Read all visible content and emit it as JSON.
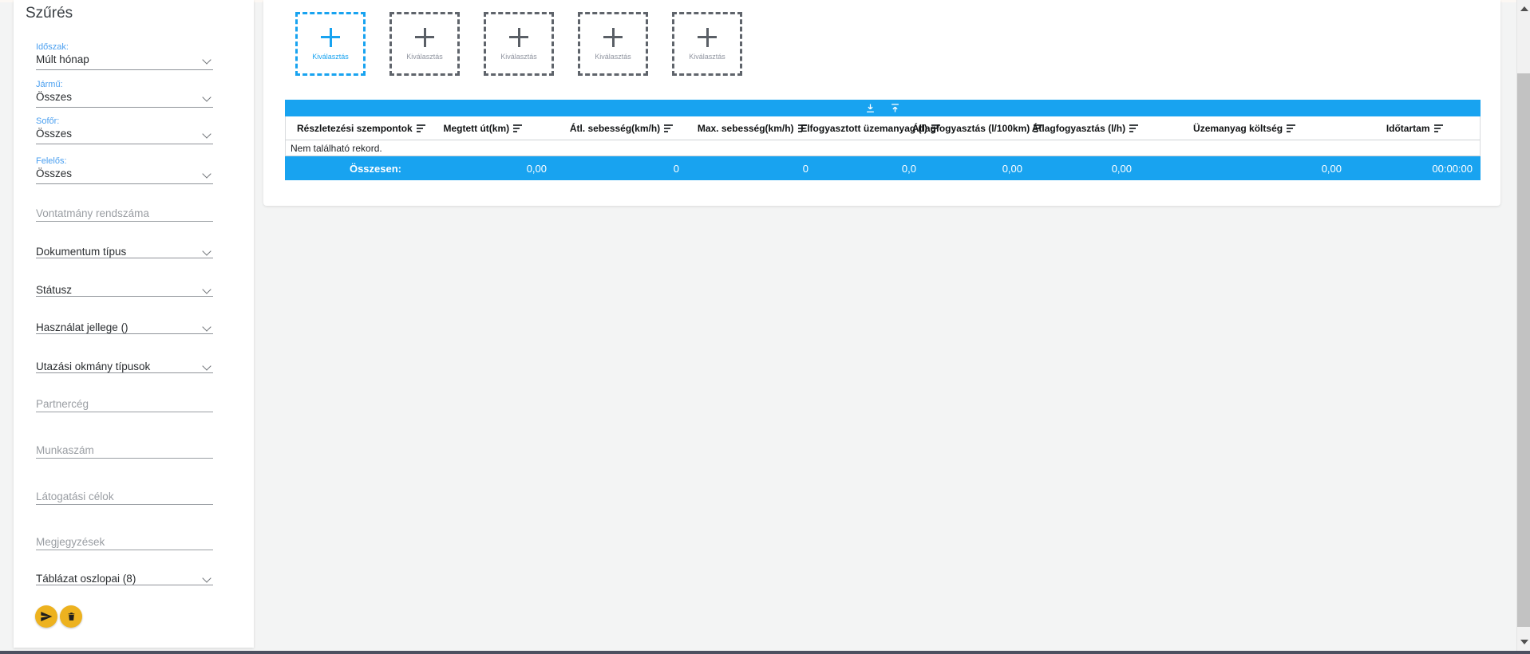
{
  "sidebar": {
    "title": "Szűrés",
    "fields": [
      {
        "label": "Időszak:",
        "value": "Múlt hónap"
      },
      {
        "label": "Jármű:",
        "value": "Összes"
      },
      {
        "label": "Sofőr:",
        "value": "Összes"
      },
      {
        "label": "Felelős:",
        "value": "Összes"
      },
      {
        "placeholder": "Vontatmány rendszáma"
      },
      {
        "value": "Dokumentum típus"
      },
      {
        "value": "Státusz"
      },
      {
        "value": "Használat jellege ()"
      },
      {
        "value": "Utazási okmány típusok"
      },
      {
        "placeholder": "Partnercég"
      },
      {
        "placeholder": "Munkaszám"
      },
      {
        "placeholder": "Látogatási célok"
      },
      {
        "placeholder": "Megjegyzések"
      },
      {
        "value": "Táblázat oszlopai (8)"
      }
    ],
    "actions": {
      "submit_icon": "send-icon",
      "clear_icon": "trash-icon"
    }
  },
  "selectors": {
    "label": "Kiválasztás",
    "count": 5,
    "active_index": 0,
    "plus_icon": "plus-icon"
  },
  "table": {
    "toolbar_icons": [
      "download-icon",
      "upload-icon"
    ],
    "columns": [
      "Részletezési szempontok",
      "Megtett út(km)",
      "Átl. sebesség(km/h)",
      "Max. sebesség(km/h)",
      "Elfogyasztott üzemanyag (l)",
      "Átlagfogyasztás (l/100km)",
      "Átlagfogyasztás (l/h)",
      "Üzemanyag költség",
      "Időtartam"
    ],
    "empty_message": "Nem található rekord.",
    "totals": {
      "label": "Összesen:",
      "values": [
        "0,00",
        "0",
        "0",
        "0,0",
        "0,00",
        "0,00",
        "0,00",
        "00:00:00"
      ]
    }
  },
  "colors": {
    "accent_blue": "#18a3f0",
    "label_blue": "#4a9ff0",
    "action_yellow": "#edb21f",
    "page_background": "#f3f4f4"
  }
}
